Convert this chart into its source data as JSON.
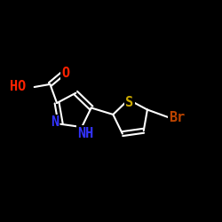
{
  "background_color": "#000000",
  "bond_color": "#ffffff",
  "O_color": "#ff2200",
  "N_color": "#3333ff",
  "S_color": "#ccaa00",
  "Br_color": "#bb4400",
  "bond_width": 1.5,
  "font_size": 10,
  "figsize": [
    2.5,
    2.5
  ],
  "dpi": 100,
  "xlim": [
    0,
    10
  ],
  "ylim": [
    0,
    10
  ]
}
